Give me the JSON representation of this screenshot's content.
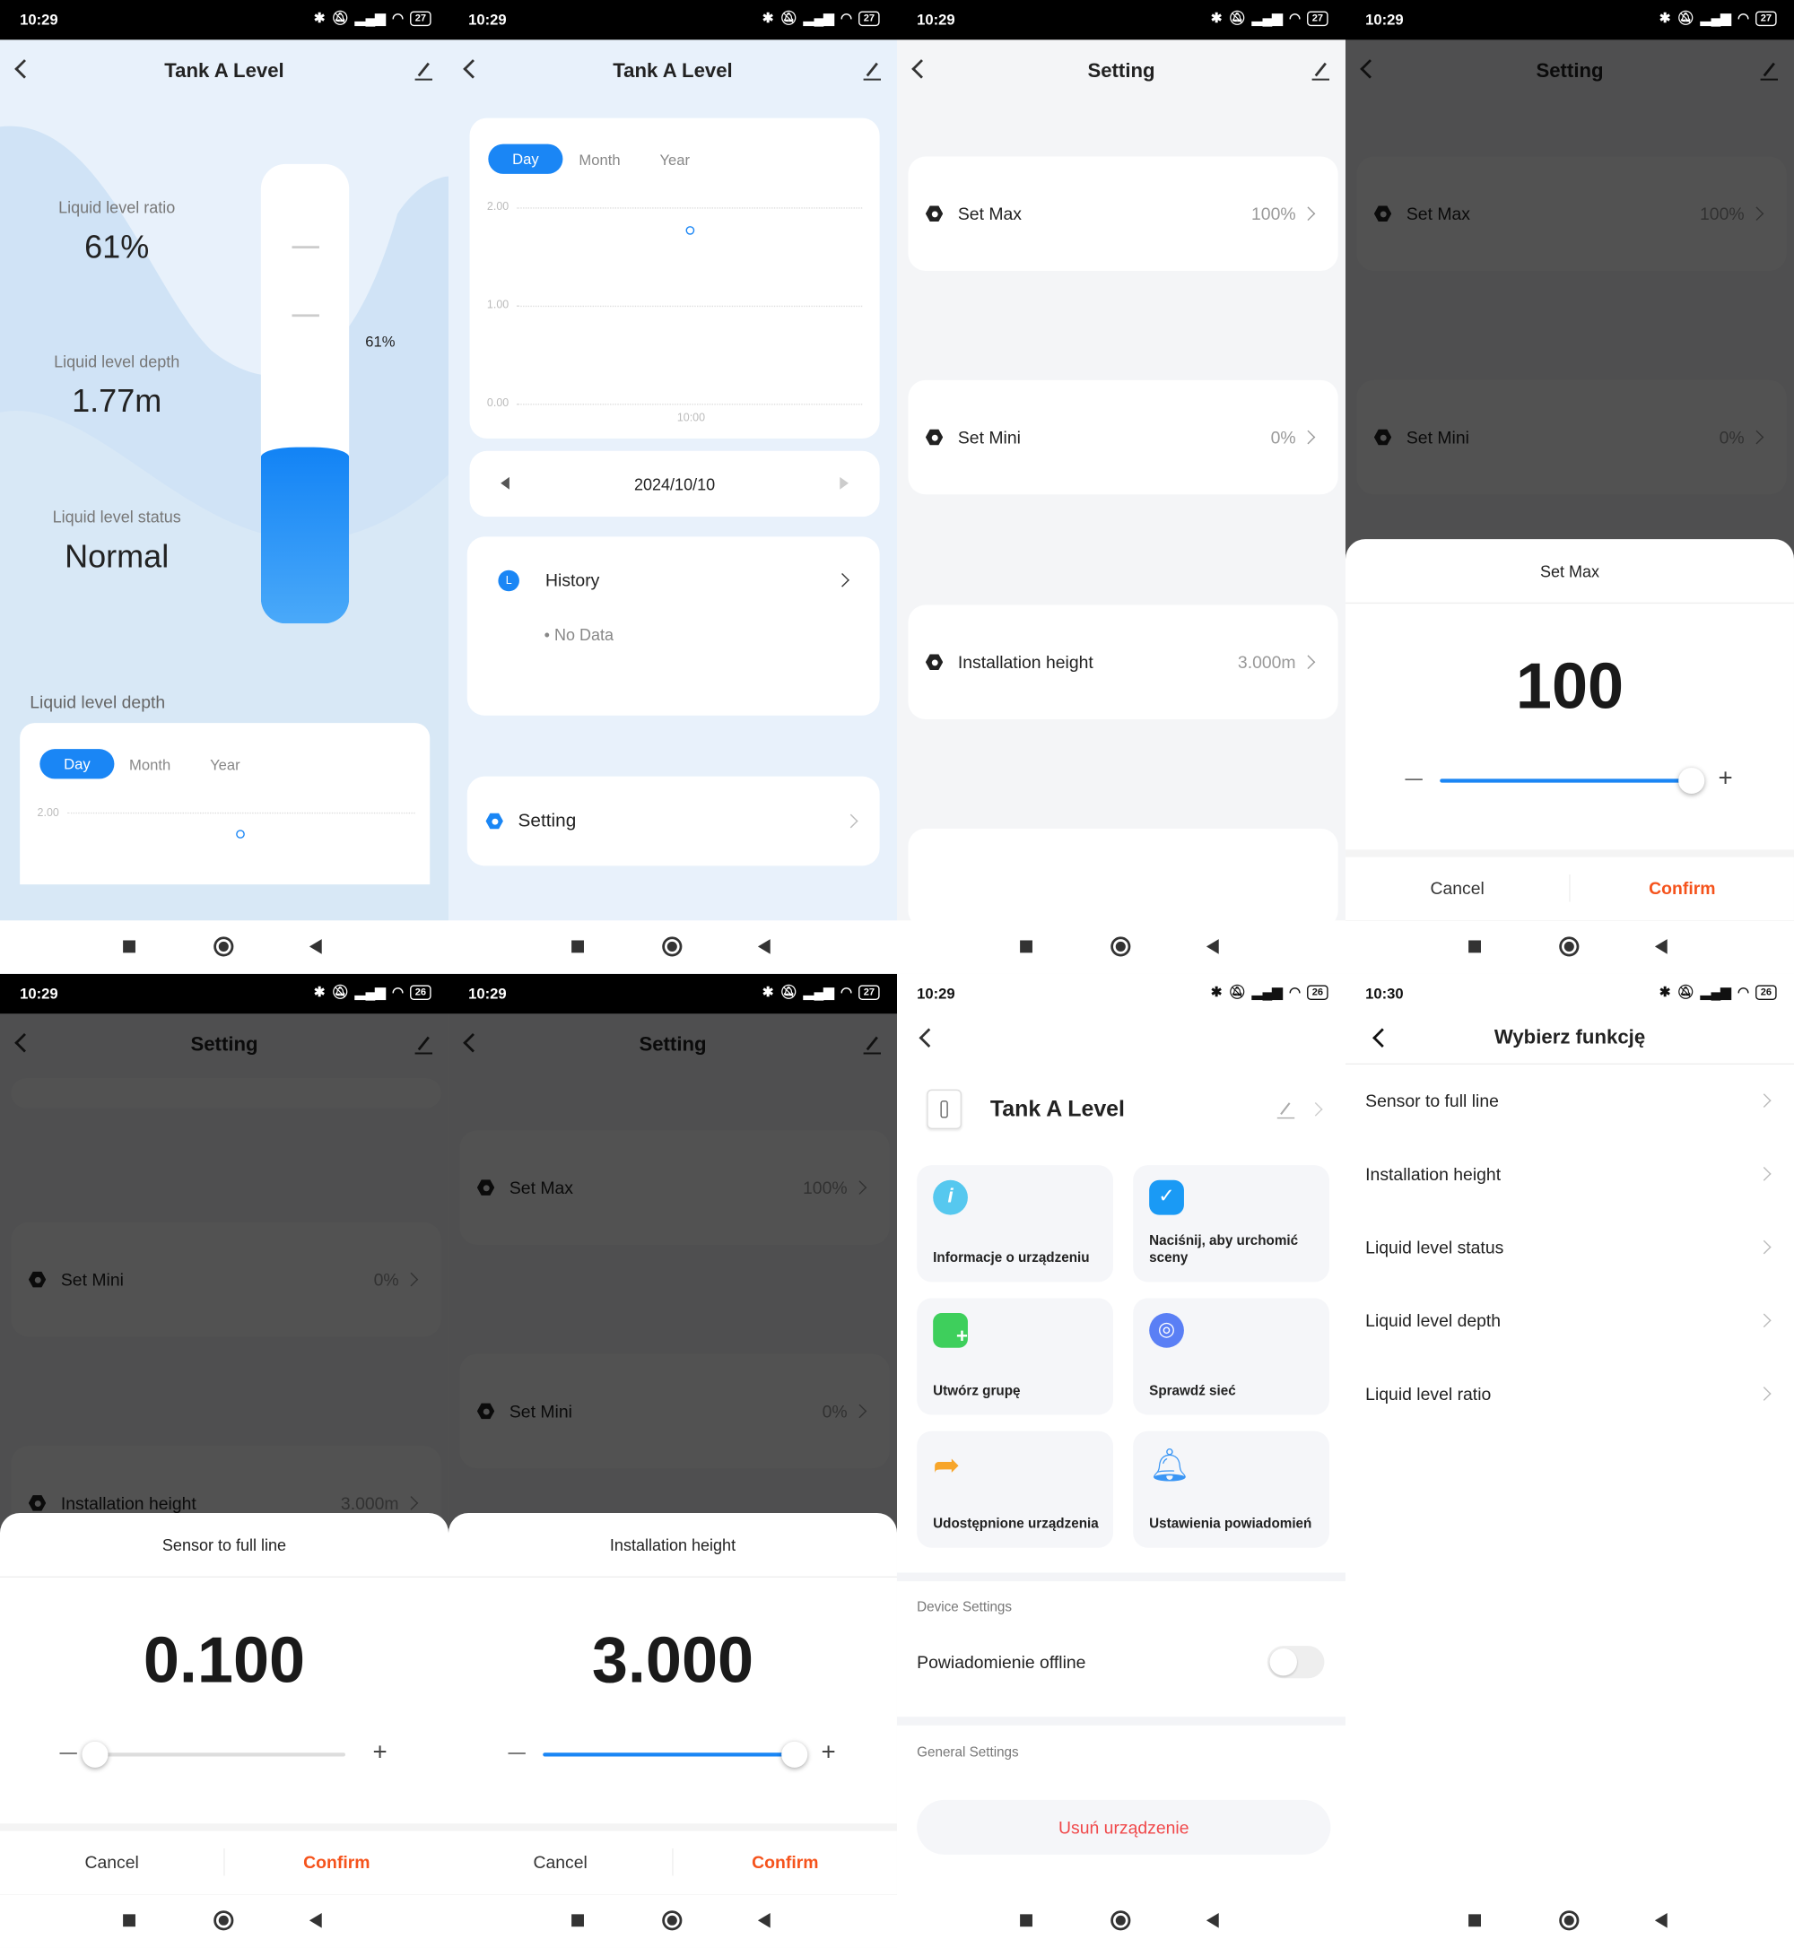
{
  "status_bars": [
    {
      "time": "10:29",
      "battery": "27"
    },
    {
      "time": "10:29",
      "battery": "27"
    },
    {
      "time": "10:29",
      "battery": "27"
    },
    {
      "time": "10:29",
      "battery": "27"
    },
    {
      "time": "10:29",
      "battery": "26"
    },
    {
      "time": "10:29",
      "battery": "27"
    },
    {
      "time": "10:29",
      "battery": "26"
    },
    {
      "time": "10:30",
      "battery": "26"
    }
  ],
  "colors": {
    "accent": "#1a86f5",
    "confirm": "#f5531c",
    "danger": "#f0484a"
  },
  "tank_screen": {
    "title": "Tank A Level",
    "ratio_label": "Liquid level ratio",
    "ratio_value": "61%",
    "depth_label": "Liquid level depth",
    "depth_value": "1.77m",
    "status_label": "Liquid level status",
    "status_value": "Normal",
    "tank_fill_percent": 61,
    "tank_label": "61%",
    "section_title": "Liquid level depth",
    "tabs": [
      "Day",
      "Month",
      "Year"
    ],
    "axis_top": "2.00"
  },
  "chart_screen": {
    "title": "Tank A Level",
    "tabs": [
      "Day",
      "Month",
      "Year"
    ],
    "chart_data": {
      "type": "scatter",
      "x": [
        "10:00"
      ],
      "y": [
        1.77
      ],
      "yticks": [
        "2.00",
        "1.00",
        "0.00"
      ],
      "xticks": [
        "10:00"
      ],
      "ylim": [
        0,
        2
      ],
      "grid": true
    },
    "date": "2024/10/10",
    "history_icon": "L",
    "history_label": "History",
    "history_empty": "• No Data",
    "setting_label": "Setting"
  },
  "setting_screen": {
    "title": "Setting",
    "items": [
      {
        "label": "Set Max",
        "value": "100%"
      },
      {
        "label": "Set Mini",
        "value": "0%"
      },
      {
        "label": "Installation height",
        "value": "3.000m"
      }
    ]
  },
  "dialogs": [
    {
      "title": "Set Max",
      "value": "100",
      "slider_percent": 100,
      "cancel": "Cancel",
      "confirm": "Confirm"
    },
    {
      "title": "Sensor to full line",
      "value": "0.100",
      "slider_percent": 0,
      "cancel": "Cancel",
      "confirm": "Confirm"
    },
    {
      "title": "Installation height",
      "value": "3.000",
      "slider_percent": 100,
      "cancel": "Cancel",
      "confirm": "Confirm"
    }
  ],
  "device_screen": {
    "device_name": "Tank A Level",
    "tiles": [
      {
        "label": "Informacje o urządzeniu",
        "icon": "info-icon"
      },
      {
        "label": "Naciśnij, aby urchomić sceny",
        "icon": "scene-check-icon"
      },
      {
        "label": "Utwórz grupę",
        "icon": "group-add-icon"
      },
      {
        "label": "Sprawdź sieć",
        "icon": "network-icon"
      },
      {
        "label": "Udostępnione urządzenia",
        "icon": "share-icon"
      },
      {
        "label": "Ustawienia powiadomień",
        "icon": "bell-icon"
      }
    ],
    "device_settings_header": "Device Settings",
    "offline_notification": "Powiadomienie offline",
    "offline_notification_on": false,
    "general_settings_header": "General Settings",
    "remove_device": "Usuń urządzenie"
  },
  "function_screen": {
    "title": "Wybierz funkcję",
    "items": [
      "Sensor to full line",
      "Installation height",
      "Liquid level status",
      "Liquid level depth",
      "Liquid level ratio"
    ]
  }
}
